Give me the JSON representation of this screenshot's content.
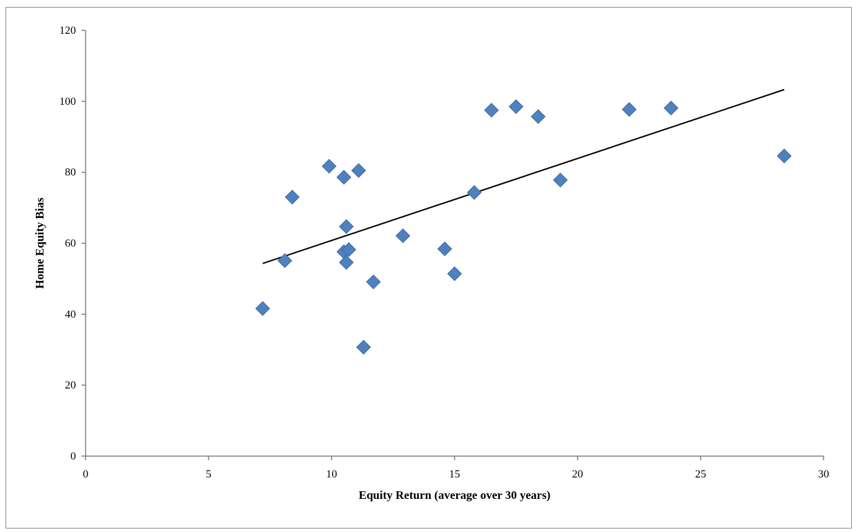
{
  "chart_data": {
    "type": "scatter",
    "xlabel": "Equity Return (average over 30 years)",
    "ylabel": "Home Equity Bias",
    "xlim": [
      0,
      30
    ],
    "ylim": [
      0,
      120
    ],
    "x_ticks": [
      0,
      5,
      10,
      15,
      20,
      25,
      30
    ],
    "y_ticks": [
      0,
      20,
      40,
      60,
      80,
      100,
      120
    ],
    "grid": false,
    "legend": "none",
    "marker": "diamond",
    "colors": {
      "marker": "#4F81BD",
      "marker_edge": "#3B6AA6",
      "trendline": "#000000",
      "axis": "#808080"
    },
    "points": [
      {
        "x": 7.2,
        "y": 41.6
      },
      {
        "x": 8.1,
        "y": 55.1
      },
      {
        "x": 8.4,
        "y": 73.0
      },
      {
        "x": 9.9,
        "y": 81.7
      },
      {
        "x": 10.5,
        "y": 78.6
      },
      {
        "x": 10.6,
        "y": 64.7
      },
      {
        "x": 10.5,
        "y": 57.6
      },
      {
        "x": 10.7,
        "y": 58.2
      },
      {
        "x": 10.6,
        "y": 54.6
      },
      {
        "x": 11.1,
        "y": 80.5
      },
      {
        "x": 11.3,
        "y": 30.7
      },
      {
        "x": 11.7,
        "y": 49.1
      },
      {
        "x": 12.9,
        "y": 62.1
      },
      {
        "x": 14.6,
        "y": 58.4
      },
      {
        "x": 15.0,
        "y": 51.4
      },
      {
        "x": 15.8,
        "y": 74.3
      },
      {
        "x": 16.5,
        "y": 97.5
      },
      {
        "x": 17.5,
        "y": 98.5
      },
      {
        "x": 18.4,
        "y": 95.7
      },
      {
        "x": 19.3,
        "y": 77.8
      },
      {
        "x": 22.1,
        "y": 97.7
      },
      {
        "x": 23.8,
        "y": 98.1
      },
      {
        "x": 28.4,
        "y": 84.6
      }
    ],
    "trendline": {
      "type": "linear",
      "x": [
        7.2,
        28.4
      ],
      "y": [
        54.3,
        103.3
      ]
    }
  }
}
